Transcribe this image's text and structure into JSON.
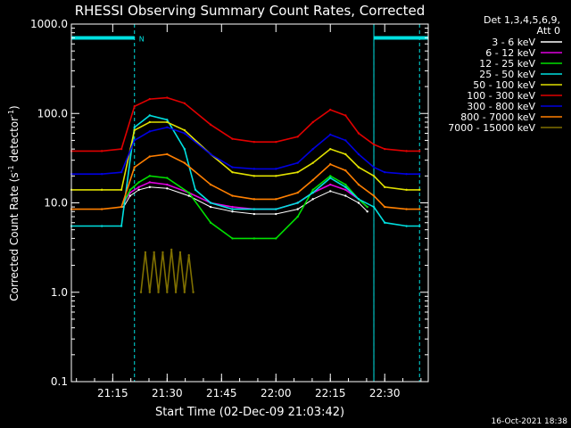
{
  "chart_data": {
    "type": "line",
    "title": "RHESSI Observing Summary Count Rates, Corrected",
    "xlabel": "Start Time (02-Dec-09 21:03:42)",
    "ylabel": "Corrected Count Rate (s⁻¹ detector⁻¹)",
    "ylabel_main": "Corrected Count Rate (s",
    "ylabel_sup1": "-1",
    "ylabel_mid": " detector",
    "ylabel_sup2": "-1",
    "ylabel_end": ")",
    "yscale": "log",
    "ylim": [
      0.1,
      1000
    ],
    "xlim": [
      21.06,
      22.7
    ],
    "x_ticks": [
      21.25,
      21.5,
      21.75,
      22.0,
      22.25,
      22.5
    ],
    "x_tick_labels": [
      "21:15",
      "21:30",
      "21:45",
      "22:00",
      "22:15",
      "22:30"
    ],
    "y_tick_labels": [
      "0.1",
      "1.0",
      "10.0",
      "100.0",
      "1000.0"
    ],
    "y_ticks": [
      0.1,
      1,
      10,
      100,
      1000
    ],
    "legend_header": [
      "Det 1,3,4,5,6,9,",
      "Att 0"
    ],
    "legend_position": "right",
    "night_label": "N",
    "night_bars": [
      [
        21.06,
        21.35
      ],
      [
        22.45,
        22.7
      ]
    ],
    "dashed_lines": [
      21.35,
      22.45,
      22.66
    ],
    "solid_lines": [
      21.06,
      22.45
    ],
    "timestamp": "16-Oct-2021 18:38",
    "series": [
      {
        "name": "3 - 6 keV",
        "color": "#000000",
        "x": [
          21.3,
          21.33,
          21.37,
          21.42,
          21.5,
          21.6,
          21.7,
          21.8,
          21.9,
          22.0,
          22.1,
          22.17,
          22.25,
          22.32,
          22.38,
          22.42
        ],
        "values": [
          9,
          12,
          14,
          15,
          14.5,
          12,
          9,
          8,
          7.5,
          7.5,
          8.5,
          11,
          13.5,
          12,
          10,
          8
        ]
      },
      {
        "name": "6 - 12 keV",
        "color": "#e000e0",
        "x": [
          21.3,
          21.33,
          21.37,
          21.42,
          21.5,
          21.6,
          21.7,
          21.8,
          21.9,
          22.0,
          22.1,
          22.17,
          22.25,
          22.32,
          22.38,
          22.42
        ],
        "values": [
          10,
          13,
          15,
          17,
          16,
          13,
          10,
          9,
          8.5,
          8.5,
          10,
          13,
          16,
          14,
          11,
          9
        ]
      },
      {
        "name": "12 - 25 keV",
        "color": "#00e000",
        "x": [
          21.3,
          21.33,
          21.37,
          21.42,
          21.5,
          21.6,
          21.7,
          21.8,
          21.9,
          22.0,
          22.1,
          22.17,
          22.25,
          22.32,
          22.38,
          22.42
        ],
        "values": [
          10,
          14,
          17,
          20,
          19,
          13,
          6,
          4,
          4,
          4,
          7,
          14,
          20,
          16,
          11,
          9
        ]
      },
      {
        "name": "25 - 50 keV",
        "color": "#00e0e0",
        "x": [
          21.06,
          21.2,
          21.29,
          21.35,
          21.42,
          21.5,
          21.58,
          21.63,
          21.7,
          21.8,
          21.9,
          22.0,
          22.1,
          22.17,
          22.25,
          22.32,
          22.38,
          22.45,
          22.5,
          22.6,
          22.66
        ],
        "values": [
          5.5,
          5.5,
          5.5,
          70,
          95,
          85,
          40,
          14,
          10,
          8.5,
          8.5,
          8.5,
          10,
          13,
          19,
          15,
          11,
          9,
          6,
          5.5,
          5.5
        ]
      },
      {
        "name": "50 - 100 keV",
        "color": "#e0e000",
        "x": [
          21.06,
          21.2,
          21.29,
          21.35,
          21.42,
          21.5,
          21.58,
          21.7,
          21.8,
          21.9,
          22.0,
          22.1,
          22.17,
          22.25,
          22.32,
          22.38,
          22.45,
          22.5,
          22.6,
          22.66
        ],
        "values": [
          14,
          14,
          14,
          65,
          80,
          80,
          65,
          35,
          22,
          20,
          20,
          22,
          28,
          40,
          35,
          25,
          20,
          15,
          14,
          14
        ]
      },
      {
        "name": "100 - 300 keV",
        "color": "#e00000",
        "x": [
          21.06,
          21.2,
          21.29,
          21.35,
          21.42,
          21.5,
          21.58,
          21.7,
          21.8,
          21.9,
          22.0,
          22.1,
          22.17,
          22.25,
          22.32,
          22.38,
          22.45,
          22.5,
          22.6,
          22.66
        ],
        "values": [
          38,
          38,
          40,
          120,
          145,
          150,
          130,
          75,
          52,
          48,
          48,
          55,
          80,
          110,
          95,
          60,
          45,
          40,
          38,
          38
        ]
      },
      {
        "name": "300 - 800 keV",
        "color": "#0000e0",
        "x": [
          21.06,
          21.2,
          21.29,
          21.35,
          21.42,
          21.5,
          21.58,
          21.7,
          21.8,
          21.9,
          22.0,
          22.1,
          22.17,
          22.25,
          22.32,
          22.38,
          22.45,
          22.5,
          22.6,
          22.66
        ],
        "values": [
          21,
          21,
          22,
          50,
          63,
          70,
          60,
          35,
          25,
          24,
          24,
          28,
          40,
          58,
          50,
          35,
          25,
          22,
          21,
          21
        ]
      },
      {
        "name": "800 - 7000 keV",
        "color": "#ff7f00",
        "x": [
          21.06,
          21.2,
          21.29,
          21.35,
          21.42,
          21.5,
          21.58,
          21.7,
          21.8,
          21.9,
          22.0,
          22.1,
          22.17,
          22.25,
          22.32,
          22.38,
          22.45,
          22.5,
          22.6,
          22.66
        ],
        "values": [
          8.5,
          8.5,
          9,
          25,
          33,
          35,
          28,
          16,
          12,
          11,
          11,
          13,
          18,
          27,
          23,
          16,
          12,
          9,
          8.5,
          8.5
        ]
      },
      {
        "name": "7000 - 15000 keV",
        "color": "#807000",
        "x": [
          21.38,
          21.4,
          21.42,
          21.44,
          21.46,
          21.48,
          21.5,
          21.52,
          21.54,
          21.56,
          21.58,
          21.6,
          21.62
        ],
        "values": [
          1,
          2.8,
          1,
          2.8,
          1,
          2.8,
          1,
          3,
          1,
          2.8,
          1,
          2.6,
          1
        ]
      }
    ]
  }
}
